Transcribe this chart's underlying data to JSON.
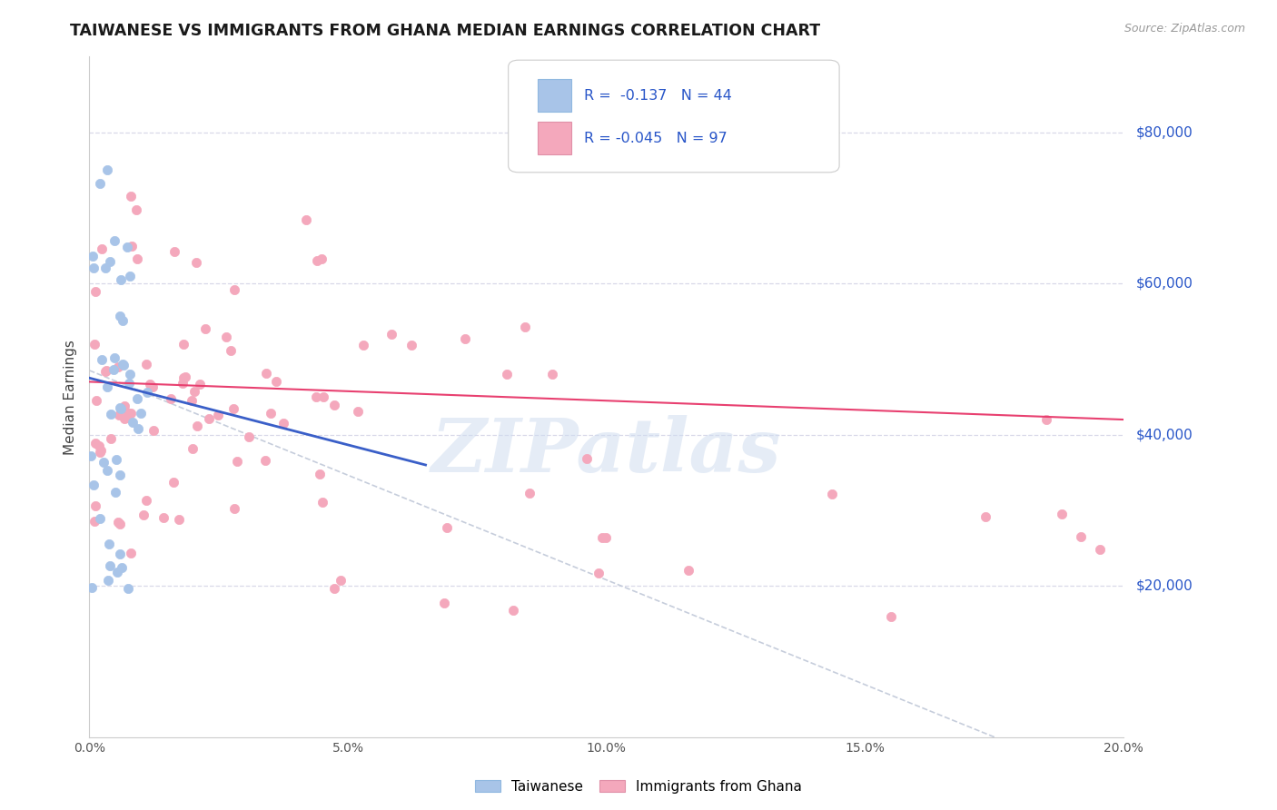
{
  "title": "TAIWANESE VS IMMIGRANTS FROM GHANA MEDIAN EARNINGS CORRELATION CHART",
  "source": "Source: ZipAtlas.com",
  "ylabel": "Median Earnings",
  "ytick_labels": [
    "$20,000",
    "$40,000",
    "$60,000",
    "$80,000"
  ],
  "ytick_vals": [
    20000,
    40000,
    60000,
    80000
  ],
  "xlim": [
    0.0,
    0.2
  ],
  "ylim": [
    0,
    90000
  ],
  "taiwanese_R": "-0.137",
  "taiwanese_N": "44",
  "ghana_R": "-0.045",
  "ghana_N": "97",
  "taiwanese_color": "#a8c4e8",
  "ghana_color": "#f4a8bc",
  "taiwan_line_color": "#3a5fc8",
  "ghana_line_color": "#e84070",
  "dash_line_color": "#c0c8d8",
  "watermark": "ZIPatlas",
  "background_color": "#ffffff",
  "legend_label_1": "Taiwanese",
  "legend_label_2": "Immigrants from Ghana",
  "grid_color": "#d8d8e8",
  "text_color_dark": "#333333",
  "text_color_blue": "#2855c8",
  "source_color": "#999999"
}
